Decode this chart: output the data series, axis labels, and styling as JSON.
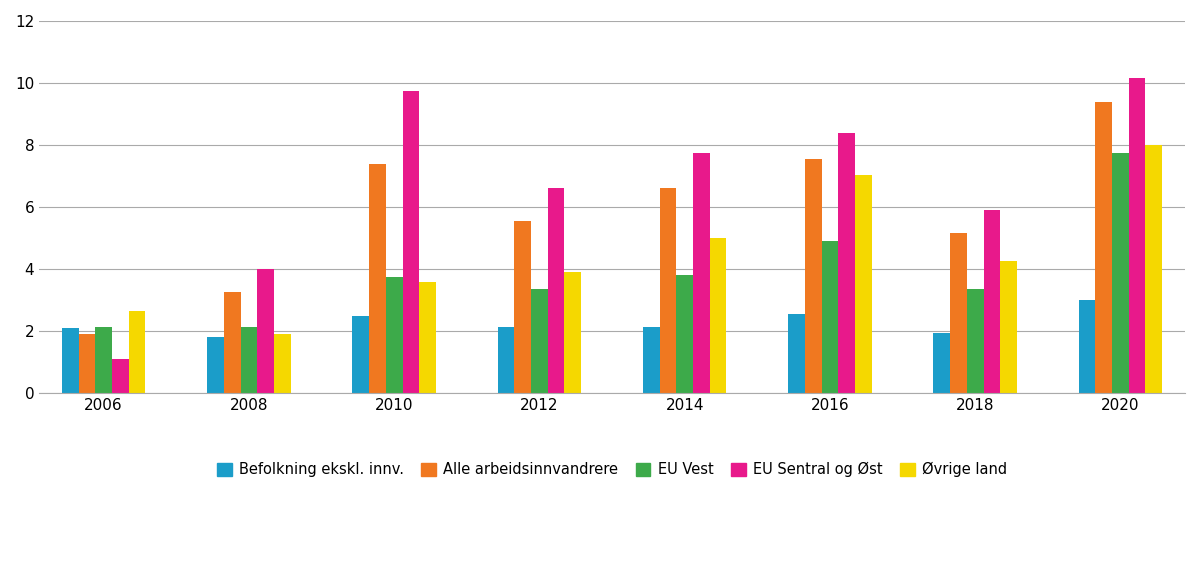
{
  "years": [
    2006,
    2008,
    2010,
    2012,
    2014,
    2016,
    2018,
    2020
  ],
  "series": {
    "Befolkning ekskl. innv.": [
      2.1,
      1.8,
      2.5,
      2.15,
      2.15,
      2.55,
      1.95,
      3.0
    ],
    "Alle arbeidsinnvandrere": [
      1.9,
      3.25,
      7.4,
      5.55,
      6.6,
      7.55,
      5.15,
      9.4
    ],
    "EU Vest": [
      2.15,
      2.15,
      3.75,
      3.35,
      3.8,
      4.9,
      3.35,
      7.75
    ],
    "EU Sentral og Øst": [
      1.1,
      4.0,
      9.75,
      6.6,
      7.75,
      8.4,
      5.9,
      10.15
    ],
    "Øvrige land": [
      2.65,
      1.9,
      3.6,
      3.9,
      5.0,
      7.05,
      4.25,
      8.0
    ]
  },
  "colors": {
    "Befolkning ekskl. innv.": "#1B9DC9",
    "Alle arbeidsinnvandrere": "#F07820",
    "EU Vest": "#3DAA4A",
    "EU Sentral og Øst": "#E8198B",
    "Øvrige land": "#F5D800"
  },
  "ylim": [
    0,
    12
  ],
  "yticks": [
    0,
    2,
    4,
    6,
    8,
    10,
    12
  ],
  "background_color": "#ffffff",
  "grid_color": "#aaaaaa"
}
